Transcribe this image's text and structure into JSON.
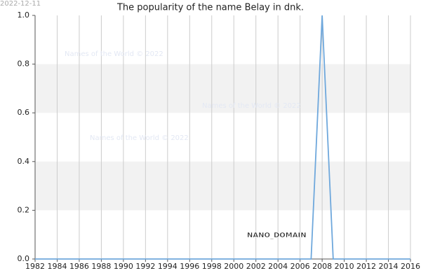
{
  "chart_data": {
    "type": "line",
    "title": "The popularity of the name Belay in dnk.",
    "date": "2022-12-11",
    "watermarks": [
      "Names of the World © 2022",
      "Names of the World © 2022",
      "Names of the World © 2022",
      "NANO_DOMAIN"
    ],
    "x": [
      1982,
      1983,
      1984,
      1985,
      1986,
      1987,
      1988,
      1989,
      1990,
      1991,
      1992,
      1993,
      1994,
      1995,
      1996,
      1997,
      1998,
      1999,
      2000,
      2001,
      2002,
      2003,
      2004,
      2005,
      2006,
      2007,
      2008,
      2009,
      2010,
      2011,
      2012,
      2013,
      2014,
      2015,
      2016
    ],
    "series": [
      {
        "name": "Belay",
        "color": "#6fa8dc",
        "values": [
          0,
          0,
          0,
          0,
          0,
          0,
          0,
          0,
          0,
          0,
          0,
          0,
          0,
          0,
          0,
          0,
          0,
          0,
          0,
          0,
          0,
          0,
          0,
          0,
          0,
          0,
          1,
          0,
          0,
          0,
          0,
          0,
          0,
          0,
          0
        ]
      }
    ],
    "xlim": [
      1982,
      2016
    ],
    "xticks": [
      1982,
      1984,
      1986,
      1988,
      1990,
      1992,
      1994,
      1996,
      1998,
      2000,
      2002,
      2004,
      2006,
      2008,
      2010,
      2012,
      2014,
      2016
    ],
    "ylim": [
      0,
      1
    ],
    "yticks": [
      {
        "value": 0,
        "label": "0.0"
      },
      0.2,
      0.4,
      0.6,
      0.8,
      {
        "value": 1,
        "label": "1.0"
      }
    ],
    "grid": true
  }
}
